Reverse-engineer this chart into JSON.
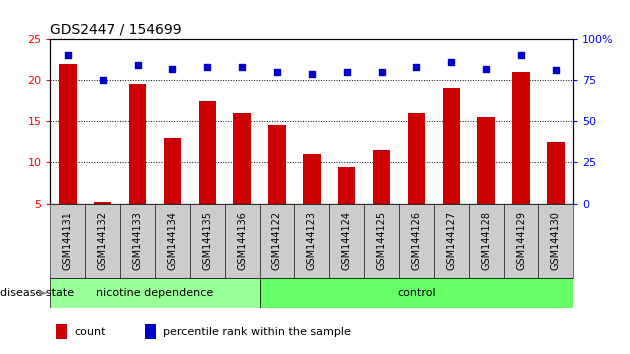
{
  "title": "GDS2447 / 154699",
  "categories": [
    "GSM144131",
    "GSM144132",
    "GSM144133",
    "GSM144134",
    "GSM144135",
    "GSM144136",
    "GSM144122",
    "GSM144123",
    "GSM144124",
    "GSM144125",
    "GSM144126",
    "GSM144127",
    "GSM144128",
    "GSM144129",
    "GSM144130"
  ],
  "bar_values": [
    22,
    5.2,
    19.5,
    13,
    17.5,
    16,
    14.5,
    11,
    9.5,
    11.5,
    16,
    19,
    15.5,
    21,
    12.5
  ],
  "percentile_values": [
    90,
    75,
    84,
    82,
    83,
    83,
    80,
    79,
    80,
    80,
    83,
    86,
    82,
    90,
    81
  ],
  "bar_color": "#cc0000",
  "dot_color": "#0000cc",
  "ylim_left": [
    5,
    25
  ],
  "ylim_right": [
    0,
    100
  ],
  "yticks_left": [
    5,
    10,
    15,
    20,
    25
  ],
  "yticks_right": [
    0,
    25,
    50,
    75,
    100
  ],
  "grid_values": [
    10,
    15,
    20
  ],
  "nicotine_n": 6,
  "control_n": 9,
  "nicotine_color": "#99ff99",
  "control_color": "#66ff66",
  "nicotine_label": "nicotine dependence",
  "control_label": "control",
  "disease_state_label": "disease state",
  "legend_count_label": "count",
  "legend_pct_label": "percentile rank within the sample",
  "background_color": "#ffffff",
  "tick_area_color": "#cccccc",
  "bar_width": 0.5,
  "title_fontsize": 10
}
